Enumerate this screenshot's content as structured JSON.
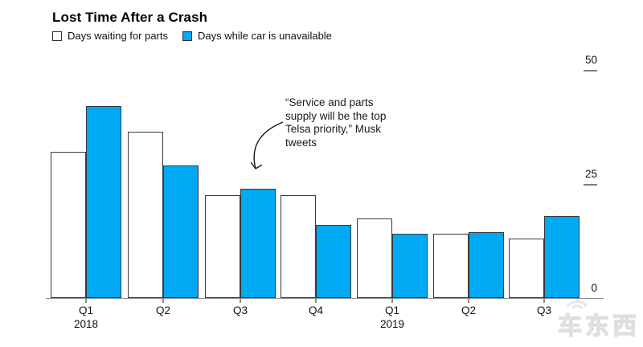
{
  "header": {
    "title": "Lost Time After a Crash"
  },
  "legend": {
    "items": [
      {
        "label": "Days waiting for parts",
        "swatch": "white"
      },
      {
        "label": "Days while car is unavailable",
        "swatch": "blue"
      }
    ]
  },
  "annotation": {
    "lines": [
      "“Service and parts",
      "supply will be the top",
      "Telsa priority,” Musk",
      "tweets"
    ],
    "arrow_icon": "curved-arrow-down"
  },
  "watermark": {
    "text": "车东西"
  },
  "colors": {
    "blue": "#00a9f4",
    "bar_outline": "#3a3a3a",
    "axis": "#8c8c8c",
    "text": "#111111",
    "watermark": "#e2e2e2"
  },
  "chart_data": {
    "type": "bar",
    "title": "Lost Time After a Crash",
    "categories": [
      "Q1",
      "Q2",
      "Q3",
      "Q4",
      "Q1",
      "Q2",
      "Q3"
    ],
    "category_years": {
      "0": "2018",
      "4": "2019"
    },
    "series": [
      {
        "name": "Days waiting for parts",
        "color": "white",
        "values": [
          32,
          36.5,
          22.5,
          22.5,
          17.5,
          14,
          13
        ]
      },
      {
        "name": "Days while car is unavailable",
        "color": "blue",
        "values": [
          42,
          29,
          24,
          16,
          14,
          14.5,
          18
        ]
      }
    ],
    "xlabel": "",
    "ylabel": "",
    "ylim": [
      0,
      50
    ],
    "yticks": [
      0,
      25,
      50
    ],
    "ytick_side": "right",
    "grid": false,
    "legend_position": "top-left"
  }
}
